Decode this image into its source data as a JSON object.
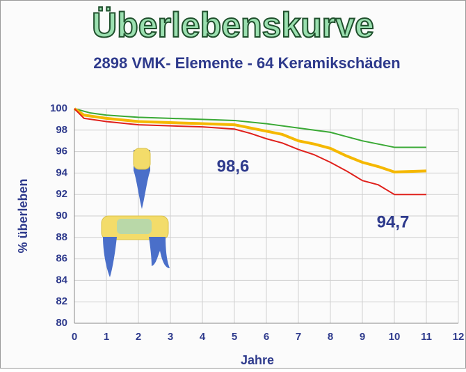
{
  "chart_data": {
    "type": "line",
    "title": "Überlebenskurve",
    "subtitle": "2898  VMK- Elemente - 64 Keramikschäden",
    "x_label": "Jahre",
    "y_label": "% überleben",
    "annotations": [
      "98,6",
      "94,7"
    ],
    "xlim": [
      0,
      12
    ],
    "ylim": [
      80,
      100
    ],
    "xticks": [
      0,
      1,
      2,
      3,
      4,
      5,
      6,
      7,
      8,
      9,
      10,
      11,
      12
    ],
    "yticks": [
      80,
      82,
      84,
      86,
      88,
      90,
      92,
      94,
      96,
      98,
      100
    ],
    "grid": true,
    "series": [
      {
        "color": "#3aa935",
        "width": 2,
        "x": [
          0,
          0.5,
          1,
          2,
          3,
          4,
          5,
          6,
          7,
          8,
          8.5,
          9,
          9.5,
          10,
          11
        ],
        "values": [
          100,
          99.6,
          99.4,
          99.2,
          99.1,
          99.0,
          98.9,
          98.6,
          98.2,
          97.8,
          97.4,
          97.0,
          96.7,
          96.4,
          96.4
        ]
      },
      {
        "color": "#f5b800",
        "width": 4,
        "x": [
          0,
          0.3,
          1,
          2,
          3,
          4,
          5,
          5.5,
          6,
          6.5,
          7,
          7.5,
          8,
          8.5,
          9,
          9.5,
          10,
          11
        ],
        "values": [
          100,
          99.4,
          99.1,
          98.8,
          98.7,
          98.6,
          98.5,
          98.2,
          97.9,
          97.6,
          97.0,
          96.7,
          96.3,
          95.6,
          95.0,
          94.6,
          94.1,
          94.2
        ]
      },
      {
        "color": "#e0201b",
        "width": 2,
        "x": [
          0,
          0.3,
          1,
          2,
          3,
          4,
          5,
          5.5,
          6,
          6.5,
          7,
          7.5,
          8,
          8.5,
          9,
          9.5,
          10,
          11
        ],
        "values": [
          100,
          99.1,
          98.8,
          98.5,
          98.4,
          98.3,
          98.1,
          97.7,
          97.2,
          96.8,
          96.2,
          95.7,
          95.0,
          94.2,
          93.3,
          92.9,
          92.0,
          92.0
        ]
      }
    ]
  }
}
